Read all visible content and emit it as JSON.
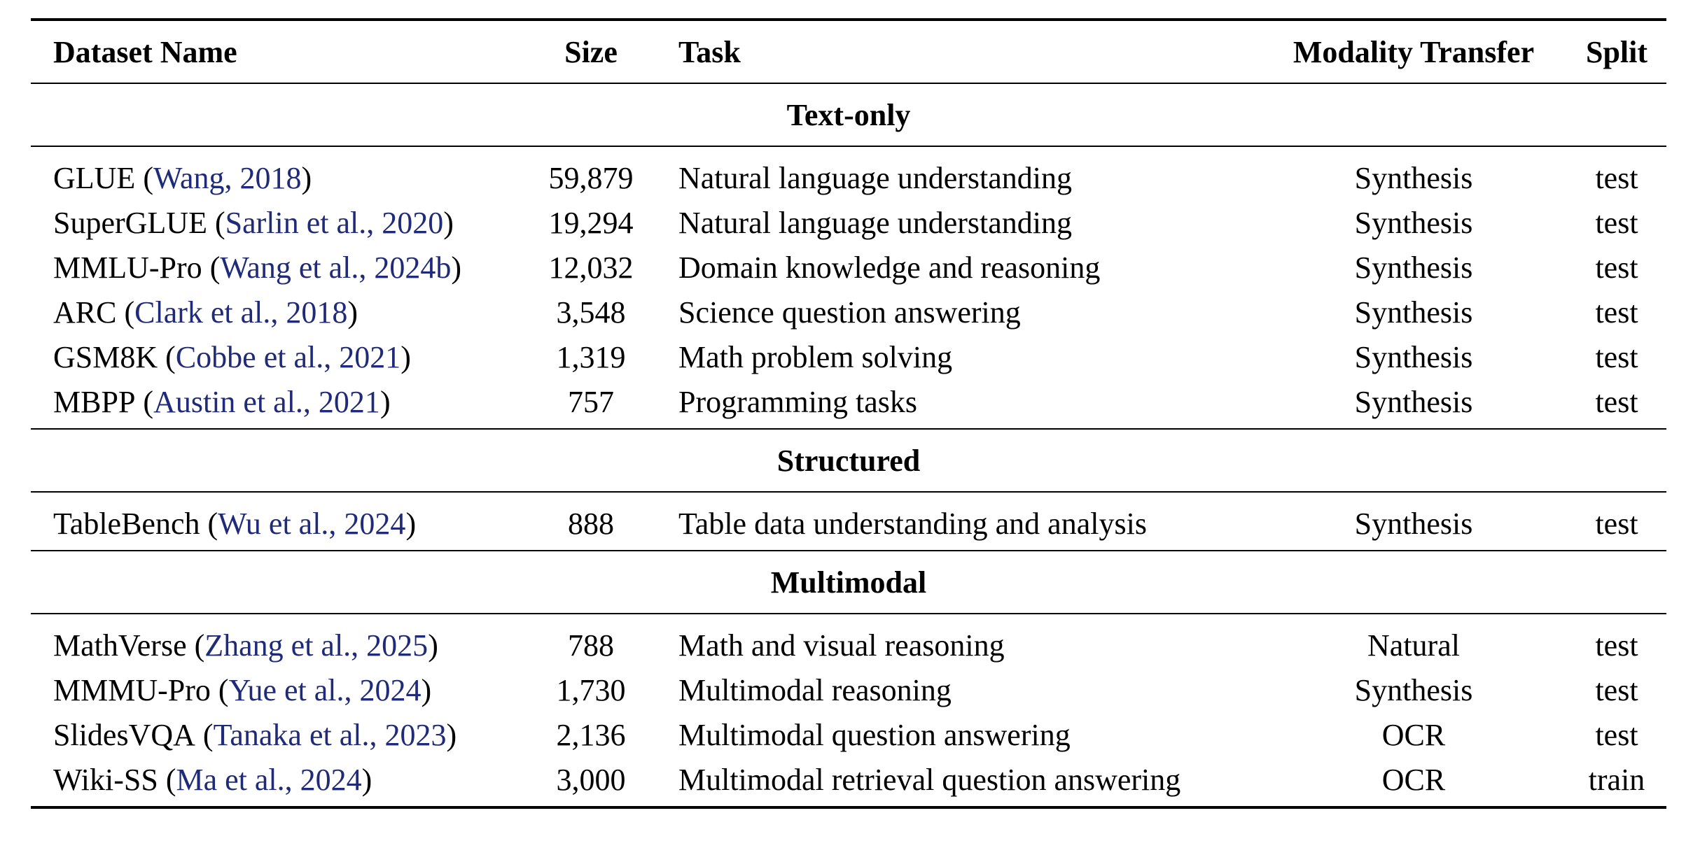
{
  "headers": {
    "name": "Dataset Name",
    "size": "Size",
    "task": "Task",
    "modality": "Modality Transfer",
    "split": "Split"
  },
  "sections": [
    {
      "title": "Text-only",
      "rows": [
        {
          "name": "GLUE",
          "cite": "Wang, 2018",
          "size": "59,879",
          "task": "Natural language understanding",
          "modality": "Synthesis",
          "split": "test"
        },
        {
          "name": "SuperGLUE",
          "cite": "Sarlin et al., 2020",
          "size": "19,294",
          "task": "Natural language understanding",
          "modality": "Synthesis",
          "split": "test"
        },
        {
          "name": "MMLU-Pro",
          "cite": "Wang et al., 2024b",
          "size": "12,032",
          "task": "Domain knowledge and reasoning",
          "modality": "Synthesis",
          "split": "test"
        },
        {
          "name": "ARC",
          "cite": "Clark et al., 2018",
          "size": "3,548",
          "task": "Science question answering",
          "modality": "Synthesis",
          "split": "test"
        },
        {
          "name": "GSM8K",
          "cite": "Cobbe et al., 2021",
          "size": "1,319",
          "task": "Math problem solving",
          "modality": "Synthesis",
          "split": "test"
        },
        {
          "name": "MBPP",
          "cite": "Austin et al., 2021",
          "size": "757",
          "task": "Programming tasks",
          "modality": "Synthesis",
          "split": "test"
        }
      ]
    },
    {
      "title": "Structured",
      "rows": [
        {
          "name": "TableBench",
          "cite": "Wu et al., 2024",
          "size": "888",
          "task": "Table data understanding and analysis",
          "modality": "Synthesis",
          "split": "test"
        }
      ]
    },
    {
      "title": "Multimodal",
      "rows": [
        {
          "name": "MathVerse",
          "cite": "Zhang et al., 2025",
          "size": "788",
          "task": "Math and visual reasoning",
          "modality": "Natural",
          "split": "test"
        },
        {
          "name": "MMMU-Pro",
          "cite": "Yue et al., 2024",
          "size": "1,730",
          "task": "Multimodal reasoning",
          "modality": "Synthesis",
          "split": "test"
        },
        {
          "name": "SlidesVQA",
          "cite": "Tanaka et al., 2023",
          "size": "2,136",
          "task": "Multimodal question answering",
          "modality": "OCR",
          "split": "test"
        },
        {
          "name": "Wiki-SS",
          "cite": "Ma et al., 2024",
          "size": "3,000",
          "task": "Multimodal retrieval question answering",
          "modality": "OCR",
          "split": "train"
        }
      ]
    }
  ]
}
